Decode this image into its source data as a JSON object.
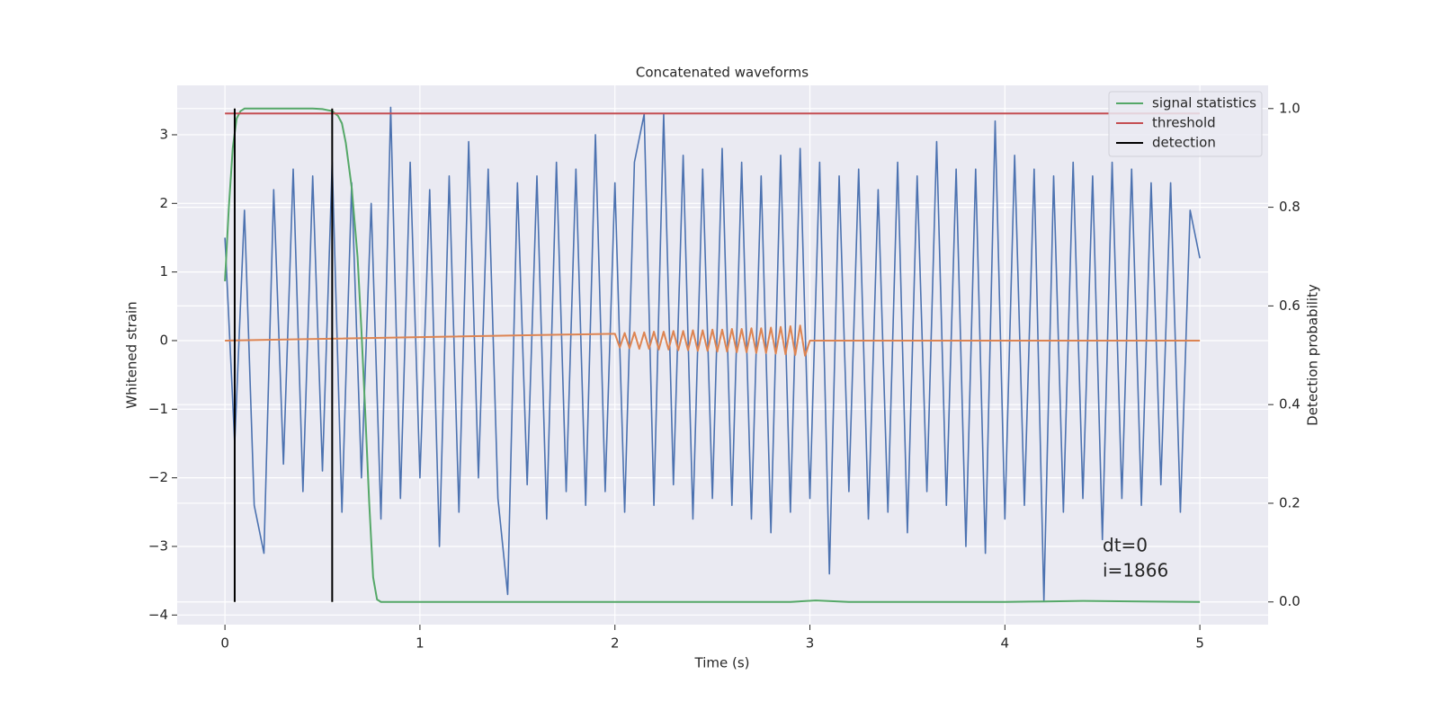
{
  "chart_data": {
    "type": "line",
    "title": "Concatenated waveforms",
    "xlabel": "Time (s)",
    "ylabel": "Whitened strain",
    "y2label": "Detection probability",
    "annotations": [
      "dt=0",
      "i=1866"
    ],
    "xlim": [
      -0.245,
      5.35
    ],
    "ylim": [
      -4.14,
      3.72
    ],
    "y2lim": [
      -0.046,
      1.047
    ],
    "xticks": [
      0,
      1,
      2,
      3,
      4,
      5
    ],
    "yticks": [
      {
        "value": -4,
        "label": "−4"
      },
      {
        "value": -3,
        "label": "−3"
      },
      {
        "value": -2,
        "label": "−2"
      },
      {
        "value": -1,
        "label": "−1"
      },
      0,
      1,
      2,
      3
    ],
    "y2ticks": [
      {
        "value": 0,
        "label": "0.0"
      },
      0.2,
      0.4,
      0.6,
      0.8,
      {
        "value": 1,
        "label": "1.0"
      }
    ],
    "grid": true,
    "legend": "upper right",
    "series": [
      {
        "color": "#4c72b0",
        "x": [
          0,
          0.05,
          0.1,
          0.15,
          0.2,
          0.25,
          0.3,
          0.35,
          0.4,
          0.45,
          0.5,
          0.55,
          0.6,
          0.65,
          0.7,
          0.75,
          0.8,
          0.85,
          0.9,
          0.95,
          1.0,
          1.05,
          1.1,
          1.15,
          1.2,
          1.25,
          1.3,
          1.35,
          1.4,
          1.45,
          1.5,
          1.55,
          1.6,
          1.65,
          1.7,
          1.75,
          1.8,
          1.85,
          1.9,
          1.95,
          2.0,
          2.05,
          2.1,
          2.15,
          2.2,
          2.25,
          2.3,
          2.35,
          2.4,
          2.45,
          2.5,
          2.55,
          2.6,
          2.65,
          2.7,
          2.75,
          2.8,
          2.85,
          2.9,
          2.95,
          3.0,
          3.05,
          3.1,
          3.15,
          3.2,
          3.25,
          3.3,
          3.35,
          3.4,
          3.45,
          3.5,
          3.55,
          3.6,
          3.65,
          3.7,
          3.75,
          3.8,
          3.85,
          3.9,
          3.95,
          4.0,
          4.05,
          4.1,
          4.15,
          4.2,
          4.25,
          4.3,
          4.35,
          4.4,
          4.45,
          4.5,
          4.55,
          4.6,
          4.65,
          4.7,
          4.75,
          4.8,
          4.85,
          4.9,
          4.95,
          5.0
        ],
        "values": [
          1.5,
          -1.5,
          1.9,
          -2.4,
          -3.1,
          2.2,
          -1.8,
          2.5,
          -2.2,
          2.4,
          -1.9,
          2.6,
          -2.5,
          2.3,
          -2.0,
          2.0,
          -2.6,
          3.4,
          -2.3,
          2.6,
          -2.0,
          2.2,
          -3.0,
          2.4,
          -2.5,
          2.9,
          -2.0,
          2.5,
          -2.3,
          -3.7,
          2.3,
          -2.1,
          2.4,
          -2.6,
          2.6,
          -2.2,
          2.5,
          -2.4,
          3.0,
          -2.2,
          2.3,
          -2.5,
          2.6,
          3.3,
          -2.4,
          3.3,
          -2.1,
          2.7,
          -2.6,
          2.5,
          -2.3,
          2.8,
          -2.4,
          2.6,
          -2.6,
          2.4,
          -2.8,
          2.7,
          -2.5,
          2.8,
          -2.3,
          2.6,
          -3.4,
          2.4,
          -2.2,
          2.5,
          -2.6,
          2.2,
          -2.5,
          2.6,
          -2.8,
          2.4,
          -2.2,
          2.9,
          -2.4,
          2.5,
          -3.0,
          2.5,
          -3.1,
          3.2,
          -2.6,
          2.7,
          -2.4,
          2.5,
          -3.8,
          2.4,
          -2.5,
          2.6,
          -2.3,
          2.4,
          -2.9,
          2.6,
          -2.3,
          2.5,
          -2.4,
          2.3,
          -2.1,
          2.3,
          -2.5,
          1.9,
          1.2
        ]
      },
      {
        "color": "#dd8452",
        "x": [
          0,
          2.0,
          2.025,
          2.05,
          2.075,
          2.1,
          2.125,
          2.15,
          2.175,
          2.2,
          2.225,
          2.25,
          2.275,
          2.3,
          2.325,
          2.35,
          2.375,
          2.4,
          2.425,
          2.45,
          2.475,
          2.5,
          2.525,
          2.55,
          2.575,
          2.6,
          2.625,
          2.65,
          2.675,
          2.7,
          2.725,
          2.75,
          2.775,
          2.8,
          2.825,
          2.85,
          2.875,
          2.9,
          2.925,
          2.95,
          2.975,
          3.0,
          5.0
        ],
        "values": [
          0,
          0.1,
          -0.1,
          0.11,
          -0.11,
          0.12,
          -0.12,
          0.12,
          -0.12,
          0.13,
          -0.13,
          0.13,
          -0.13,
          0.14,
          -0.14,
          0.14,
          -0.14,
          0.15,
          -0.15,
          0.15,
          -0.15,
          0.16,
          -0.16,
          0.16,
          -0.16,
          0.17,
          -0.17,
          0.17,
          -0.17,
          0.18,
          -0.18,
          0.18,
          -0.18,
          0.19,
          -0.19,
          0.2,
          -0.2,
          0.21,
          -0.21,
          0.22,
          -0.22,
          0,
          0
        ]
      },
      {
        "name": "signal statistics",
        "color": "#55a868",
        "axis": "y2",
        "x": [
          0,
          0.02,
          0.04,
          0.06,
          0.08,
          0.1,
          0.15,
          0.3,
          0.45,
          0.5,
          0.55,
          0.58,
          0.6,
          0.62,
          0.65,
          0.68,
          0.7,
          0.72,
          0.74,
          0.76,
          0.78,
          0.8,
          1.5,
          2.5,
          2.9,
          3.03,
          3.2,
          4.0,
          4.2,
          4.4,
          5.0
        ],
        "values": [
          0.65,
          0.8,
          0.92,
          0.98,
          0.995,
          1.0,
          1.0,
          1.0,
          1.0,
          0.999,
          0.995,
          0.985,
          0.97,
          0.93,
          0.84,
          0.7,
          0.55,
          0.38,
          0.2,
          0.05,
          0.005,
          0,
          0,
          0,
          0,
          0.003,
          0,
          0,
          0.001,
          0.002,
          0
        ]
      },
      {
        "name": "threshold",
        "color": "#c44e52",
        "axis": "y2",
        "x": [
          0,
          5.0
        ],
        "values": [
          0.99,
          0.99
        ]
      },
      {
        "name": "detection",
        "color": "#000000",
        "axis": "y2",
        "style": "vlines",
        "x": [
          0.05,
          0.55
        ],
        "y_range": [
          0,
          1
        ]
      }
    ]
  }
}
